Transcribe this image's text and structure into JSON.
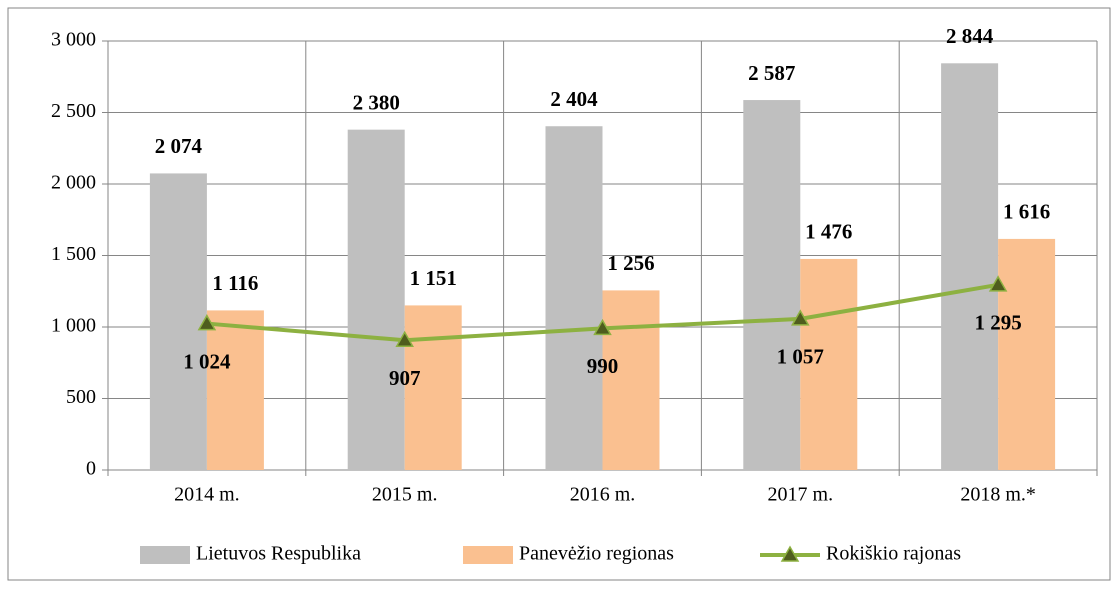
{
  "chart_data": {
    "type": "bar-line",
    "categories": [
      "2014 m.",
      "2015 m.",
      "2016 m.",
      "2017 m.",
      "2018 m.*"
    ],
    "series": [
      {
        "name": "Lietuvos Respublika",
        "color": "#bfbfbf",
        "type": "bar",
        "values": [
          2074,
          2380,
          2404,
          2587,
          2844
        ],
        "value_labels": [
          "2 074",
          "2 380",
          "2 404",
          "2 587",
          "2 844"
        ]
      },
      {
        "name": "Panevėžio regionas",
        "color": "#fac090",
        "type": "bar",
        "values": [
          1116,
          1151,
          1256,
          1476,
          1616
        ],
        "value_labels": [
          "1 116",
          "1 151",
          "1 256",
          "1 476",
          "1 616"
        ]
      },
      {
        "name": "Rokiškio rajonas",
        "color": "#8db141",
        "type": "line",
        "marker_color": "#4f5d1e",
        "values": [
          1024,
          907,
          990,
          1057,
          1295
        ],
        "value_labels": [
          "1 024",
          "907",
          "990",
          "1 057",
          "1 295"
        ]
      }
    ],
    "ylim": [
      0,
      3000
    ],
    "yticks": [
      0,
      500,
      {
        "value": 1000,
        "label": "1 000"
      },
      {
        "value": 1500,
        "label": "1 500"
      },
      {
        "value": 2000,
        "label": "2 000"
      },
      {
        "value": 2500,
        "label": "2 500"
      },
      {
        "value": 3000,
        "label": "3 000"
      }
    ],
    "grid": true,
    "legend": "bottom"
  }
}
